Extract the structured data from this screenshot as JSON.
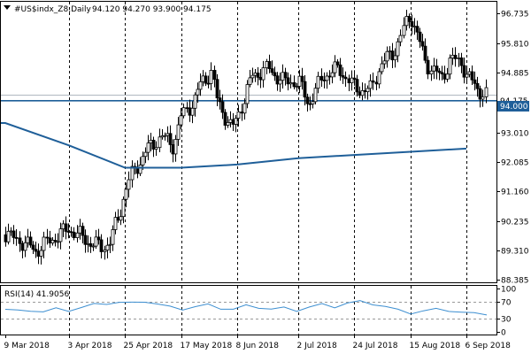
{
  "chart_data": {
    "type": "candlestick",
    "symbol_label": "#US$indx_Z8,Daily",
    "ohlc_label": "94.120 94.270 93.900 94.175",
    "price_axis": {
      "ticks": [
        "96.735",
        "95.810",
        "94.885",
        "93.010",
        "92.085",
        "91.160",
        "90.235",
        "89.310",
        "88.385"
      ],
      "ylim": [
        88.31,
        97.1
      ]
    },
    "current_price_label": "94.175",
    "horizontal_level": {
      "value": 94.0,
      "label": "94.000",
      "color": "#1f5f99"
    },
    "x_axis": {
      "labels": [
        "9 Mar 2018",
        "3 Apr 2018",
        "25 Apr 2018",
        "17 May 2018",
        "8 Jun 2018",
        "2 Jul 2018",
        "24 Jul 2018",
        "15 Aug 2018",
        "6 Sep 2018"
      ]
    },
    "price_path": [
      {
        "date": "9 Mar 2018",
        "close": 89.8
      },
      {
        "date": "15 Mar 2018",
        "close": 89.6
      },
      {
        "date": "21 Mar 2018",
        "close": 89.3
      },
      {
        "date": "28 Mar 2018",
        "close": 89.7
      },
      {
        "date": "3 Apr 2018",
        "close": 90.0
      },
      {
        "date": "10 Apr 2018",
        "close": 89.6
      },
      {
        "date": "16 Apr 2018",
        "close": 89.4
      },
      {
        "date": "19 Apr 2018",
        "close": 89.6
      },
      {
        "date": "23 Apr 2018",
        "close": 90.5
      },
      {
        "date": "25 Apr 2018",
        "close": 91.2
      },
      {
        "date": "27 Apr 2018",
        "close": 91.6
      },
      {
        "date": "3 May 2018",
        "close": 92.4
      },
      {
        "date": "9 May 2018",
        "close": 92.9
      },
      {
        "date": "14 May 2018",
        "close": 92.6
      },
      {
        "date": "17 May 2018",
        "close": 93.5
      },
      {
        "date": "22 May 2018",
        "close": 94.0
      },
      {
        "date": "25 May 2018",
        "close": 94.6
      },
      {
        "date": "29 May 2018",
        "close": 94.9
      },
      {
        "date": "31 May 2018",
        "close": 94.0
      },
      {
        "date": "6 Jun 2018",
        "close": 93.1
      },
      {
        "date": "8 Jun 2018",
        "close": 93.5
      },
      {
        "date": "14 Jun 2018",
        "close": 94.8
      },
      {
        "date": "20 Jun 2018",
        "close": 95.0
      },
      {
        "date": "26 Jun 2018",
        "close": 94.6
      },
      {
        "date": "2 Jul 2018",
        "close": 94.6
      },
      {
        "date": "6 Jul 2018",
        "close": 93.9
      },
      {
        "date": "12 Jul 2018",
        "close": 94.8
      },
      {
        "date": "18 Jul 2018",
        "close": 95.0
      },
      {
        "date": "24 Jul 2018",
        "close": 94.4
      },
      {
        "date": "30 Jul 2018",
        "close": 94.3
      },
      {
        "date": "3 Aug 2018",
        "close": 95.1
      },
      {
        "date": "9 Aug 2018",
        "close": 95.6
      },
      {
        "date": "13 Aug 2018",
        "close": 96.4
      },
      {
        "date": "15 Aug 2018",
        "close": 96.7
      },
      {
        "date": "17 Aug 2018",
        "close": 96.2
      },
      {
        "date": "21 Aug 2018",
        "close": 95.2
      },
      {
        "date": "27 Aug 2018",
        "close": 94.7
      },
      {
        "date": "31 Aug 2018",
        "close": 95.3
      },
      {
        "date": "4 Sep 2018",
        "close": 95.2
      },
      {
        "date": "6 Sep 2018",
        "close": 94.8
      },
      {
        "date": "10 Sep 2018",
        "close": 94.4
      },
      {
        "date": "13 Sep 2018",
        "close": 94.2
      },
      {
        "date": "14 Sep 2018",
        "close": 94.175
      }
    ],
    "moving_average": [
      {
        "date": "9 Mar 2018",
        "value": 93.3
      },
      {
        "date": "3 Apr 2018",
        "value": 92.6
      },
      {
        "date": "25 Apr 2018",
        "value": 91.9
      },
      {
        "date": "17 May 2018",
        "value": 91.9
      },
      {
        "date": "8 Jun 2018",
        "value": 92.0
      },
      {
        "date": "2 Jul 2018",
        "value": 92.2
      },
      {
        "date": "24 Jul 2018",
        "value": 92.3
      },
      {
        "date": "15 Aug 2018",
        "value": 92.4
      },
      {
        "date": "6 Sep 2018",
        "value": 92.5
      }
    ],
    "rsi": {
      "label": "RSI(14) 41.9056",
      "ticks": [
        "100",
        "70",
        "30",
        "0"
      ],
      "levels": [
        70,
        30
      ],
      "values": [
        52,
        48,
        50,
        46,
        53,
        50,
        56,
        63,
        66,
        68,
        66,
        71,
        64,
        57,
        53,
        58,
        62,
        55,
        52,
        60,
        57,
        52,
        55,
        50,
        57,
        63,
        58,
        66,
        70,
        65,
        58,
        50,
        44,
        48,
        52,
        50,
        45,
        42,
        41.9
      ]
    },
    "grid": true,
    "colors": {
      "candle": "#000000",
      "ma": "#1f5f99",
      "rsi": "#3d8fd1",
      "level_line": "#1f5f99"
    }
  }
}
